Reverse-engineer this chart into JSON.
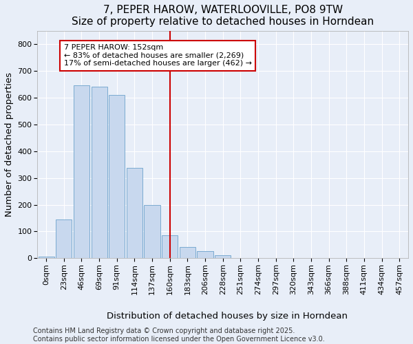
{
  "title_line1": "7, PEPER HAROW, WATERLOOVILLE, PO8 9TW",
  "title_line2": "Size of property relative to detached houses in Horndean",
  "xlabel": "Distribution of detached houses by size in Horndean",
  "ylabel": "Number of detached properties",
  "bar_color": "#c8d8ee",
  "bar_edge_color": "#7aaad0",
  "bg_color": "#e8eef8",
  "grid_color": "#ffffff",
  "categories": [
    "0sqm",
    "23sqm",
    "46sqm",
    "69sqm",
    "91sqm",
    "114sqm",
    "137sqm",
    "160sqm",
    "183sqm",
    "206sqm",
    "228sqm",
    "251sqm",
    "274sqm",
    "297sqm",
    "320sqm",
    "343sqm",
    "366sqm",
    "388sqm",
    "411sqm",
    "434sqm",
    "457sqm"
  ],
  "values": [
    5,
    145,
    645,
    640,
    610,
    338,
    200,
    85,
    42,
    27,
    12,
    2,
    0,
    0,
    0,
    0,
    0,
    0,
    0,
    0,
    2
  ],
  "ylim": [
    0,
    850
  ],
  "yticks": [
    0,
    100,
    200,
    300,
    400,
    500,
    600,
    700,
    800
  ],
  "property_label": "7 PEPER HAROW: 152sqm",
  "annotation_line1": "← 83% of detached houses are smaller (2,269)",
  "annotation_line2": "17% of semi-detached houses are larger (462) →",
  "vline_color": "#cc0000",
  "annotation_box_color": "#ffffff",
  "annotation_box_edge": "#cc0000",
  "footer_line1": "Contains HM Land Registry data © Crown copyright and database right 2025.",
  "footer_line2": "Contains public sector information licensed under the Open Government Licence v3.0.",
  "title_fontsize": 11,
  "subtitle_fontsize": 10,
  "tick_fontsize": 8,
  "label_fontsize": 9.5,
  "footer_fontsize": 7,
  "vline_x_index": 7
}
